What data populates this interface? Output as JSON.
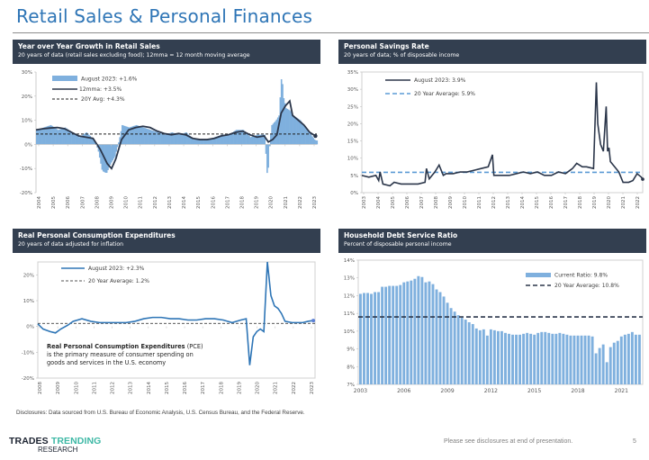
{
  "page": {
    "title": "Retail Sales & Personal Finances",
    "disclosure": "Disclosures: Data sourced from U.S. Bureau of Economic Analysis, U.S. Census Bureau, and the Federal Reserve.",
    "footer_note": "Please see disclosures at end of presentation.",
    "page_number": "5",
    "logo": {
      "word1": "TRADES",
      "word2": "TRENDING",
      "word3": "RESEARCH"
    },
    "colors": {
      "title": "#2e75b6",
      "header_bg": "#333f50",
      "bar_blue": "#7fb0de",
      "dark_line": "#2b364a",
      "mid_blue": "#2e75b6",
      "dash_blue": "#5b9bd5",
      "logo_teal": "#3db8a5"
    }
  },
  "panels": {
    "retail": {
      "title": "Year over Year Growth in Retail Sales",
      "subtitle": "20 years of data (retail sales excluding food); 12mma = 12 month moving average"
    },
    "savings": {
      "title": "Personal Savings Rate",
      "subtitle": "20 years of data; % of disposable income"
    },
    "pce": {
      "title": "Real Personal Consumption Expenditures",
      "subtitle": "20 years of data adjusted for inflation",
      "annotation_bold": "Real Personal Consumption Expenditures",
      "annotation_rest1": " (PCE)",
      "annotation_line2": "is the primary measure of consumer spending on",
      "annotation_line3": "goods and services in the U.S. economy"
    },
    "debt": {
      "title": "Household Debt Service Ratio",
      "subtitle": "Percent of disposable personal income"
    }
  },
  "chart_data": [
    {
      "id": "retail",
      "type": "bar",
      "title": "Year over Year Growth in Retail Sales",
      "ylim": [
        -20,
        30
      ],
      "yticks": [
        -20,
        -10,
        0,
        10,
        20,
        30
      ],
      "ytick_labels": [
        "-20%",
        "-10%",
        "0%",
        "10%",
        "20%",
        "30%"
      ],
      "x_range": [
        2004,
        2023.7
      ],
      "xtick_labels": [
        "2004",
        "2005",
        "2006",
        "2007",
        "2008",
        "2009",
        "2010",
        "2011",
        "2012",
        "2013",
        "2014",
        "2015",
        "2016",
        "2017",
        "2018",
        "2019",
        "2020",
        "2021",
        "2022",
        "2023"
      ],
      "legend": [
        "August 2023: +1.6%",
        "12mma: +3.5%",
        "20Y Avg: +4.3%"
      ],
      "legend_position": "top-left",
      "average": 4.3,
      "series": [
        {
          "name": "YoY monthly (bars)",
          "x": [
            2004.0,
            2004.5,
            2005.0,
            2005.5,
            2006.0,
            2006.5,
            2007.0,
            2007.5,
            2008.0,
            2008.3,
            2008.6,
            2008.9,
            2009.2,
            2009.5,
            2009.8,
            2010.0,
            2010.5,
            2011.0,
            2011.5,
            2012.0,
            2012.5,
            2013.0,
            2013.5,
            2014.0,
            2014.5,
            2015.0,
            2015.5,
            2016.0,
            2016.5,
            2017.0,
            2017.5,
            2018.0,
            2018.5,
            2019.0,
            2019.5,
            2020.0,
            2020.2,
            2020.35,
            2020.5,
            2020.8,
            2021.0,
            2021.2,
            2021.3,
            2021.5,
            2021.8,
            2022.0,
            2022.5,
            2023.0,
            2023.5,
            2023.6
          ],
          "values": [
            6,
            7,
            8,
            6,
            7,
            5,
            3,
            5,
            2,
            -2,
            -11,
            -12,
            -8,
            -5,
            2,
            8,
            7,
            8,
            7,
            6,
            5,
            4,
            5,
            4,
            5,
            2,
            2,
            2,
            3,
            4,
            4,
            6,
            6,
            3,
            4,
            4,
            -15,
            1,
            8,
            10,
            12,
            30,
            20,
            15,
            14,
            12,
            10,
            6,
            2,
            1.6
          ]
        },
        {
          "name": "12mma",
          "x": [
            2004.0,
            2004.5,
            2005.0,
            2005.5,
            2006.0,
            2006.5,
            2007.0,
            2007.5,
            2008.0,
            2008.5,
            2009.0,
            2009.3,
            2009.6,
            2010.0,
            2010.5,
            2011.0,
            2011.5,
            2012.0,
            2012.5,
            2013.0,
            2013.5,
            2014.0,
            2014.5,
            2015.0,
            2015.5,
            2016.0,
            2016.5,
            2017.0,
            2017.5,
            2018.0,
            2018.5,
            2019.0,
            2019.5,
            2020.0,
            2020.3,
            2020.6,
            2020.9,
            2021.2,
            2021.5,
            2021.8,
            2022.0,
            2022.4,
            2022.8,
            2023.2,
            2023.6
          ],
          "values": [
            6,
            6.5,
            6.8,
            7,
            6.5,
            5,
            3.5,
            3,
            2.5,
            -2,
            -8,
            -10,
            -6,
            2,
            6,
            7,
            7.5,
            7,
            5.5,
            4.5,
            4,
            4.5,
            4,
            2.5,
            2,
            2,
            2.5,
            3.5,
            4,
            5,
            5.5,
            4,
            3,
            3.5,
            1,
            2,
            4,
            13,
            16,
            18,
            12,
            10,
            8,
            5,
            3.5
          ]
        }
      ]
    },
    {
      "id": "savings",
      "type": "line",
      "title": "Personal Savings Rate",
      "ylim": [
        0,
        35
      ],
      "yticks": [
        0,
        5,
        10,
        15,
        20,
        25,
        30,
        35
      ],
      "ytick_labels": [
        "0%",
        "5%",
        "10%",
        "15%",
        "20%",
        "25%",
        "30%",
        "35%"
      ],
      "x_range": [
        2003,
        2023
      ],
      "xtick_labels": [
        "2003",
        "2004",
        "2005",
        "2006",
        "2007",
        "2008",
        "2009",
        "2010",
        "2011",
        "2012",
        "2013",
        "2014",
        "2015",
        "2016",
        "2017",
        "2018",
        "2019",
        "2020",
        "2021",
        "2022"
      ],
      "legend": [
        "August 2023: 3.9%",
        "20 Year Average: 5.9%"
      ],
      "legend_position": "top-left",
      "average": 5.9,
      "series": [
        {
          "name": "Personal Savings Rate",
          "x": [
            2003.0,
            2003.5,
            2004.0,
            2004.2,
            2004.3,
            2004.5,
            2005.0,
            2005.3,
            2005.8,
            2006.5,
            2007.0,
            2007.5,
            2007.6,
            2007.8,
            2008.2,
            2008.5,
            2008.8,
            2009.0,
            2009.5,
            2010.0,
            2010.5,
            2011.0,
            2011.5,
            2012.0,
            2012.3,
            2012.4,
            2012.6,
            2013.0,
            2013.5,
            2014.0,
            2014.5,
            2015.0,
            2015.5,
            2016.0,
            2016.5,
            2017.0,
            2017.5,
            2018.0,
            2018.3,
            2018.7,
            2019.0,
            2019.5,
            2019.7,
            2019.8,
            2020.0,
            2020.2,
            2020.4,
            2020.5,
            2020.6,
            2020.7,
            2021.0,
            2021.3,
            2021.6,
            2022.0,
            2022.3,
            2022.6,
            2022.9,
            2023.0
          ],
          "values": [
            5,
            4.5,
            5,
            3.5,
            6,
            2.5,
            2,
            3,
            2.5,
            2.5,
            2.5,
            3,
            7,
            4,
            6,
            8,
            5,
            5.5,
            5.5,
            6,
            6,
            6.5,
            7,
            7.5,
            11,
            5,
            5,
            5,
            5,
            5.5,
            6,
            5.5,
            6,
            5,
            5,
            6,
            5.5,
            7,
            8.5,
            7.5,
            7.5,
            7,
            32,
            20,
            14,
            12,
            25,
            12,
            13,
            9,
            7.5,
            6,
            3,
            3,
            3.5,
            5.5,
            4.5,
            3.9
          ]
        }
      ]
    },
    {
      "id": "pce",
      "type": "line",
      "title": "Real Personal Consumption Expenditures",
      "ylim": [
        -20,
        25
      ],
      "yticks": [
        -20,
        -10,
        0,
        10,
        20
      ],
      "ytick_labels": [
        "-20%",
        "-10%",
        "0%",
        "10%",
        "20%"
      ],
      "x_range": [
        2008,
        2023.7
      ],
      "xtick_labels": [
        "2008",
        "2009",
        "2010",
        "2011",
        "2012",
        "2013",
        "2014",
        "2015",
        "2016",
        "2017",
        "2018",
        "2019",
        "2020",
        "2021",
        "2022",
        "2023"
      ],
      "legend": [
        "August 2023: +2.3%",
        "20 Year Average: 1.2%"
      ],
      "legend_position": "top-left",
      "average": 1.2,
      "series": [
        {
          "name": "Real PCE YoY",
          "x": [
            2008.0,
            2008.3,
            2008.7,
            2009.0,
            2009.3,
            2009.7,
            2010.0,
            2010.5,
            2011.0,
            2011.5,
            2012.0,
            2012.5,
            2013.0,
            2013.5,
            2014.0,
            2014.5,
            2015.0,
            2015.5,
            2016.0,
            2016.5,
            2017.0,
            2017.5,
            2018.0,
            2018.5,
            2019.0,
            2019.5,
            2019.8,
            2020.0,
            2020.2,
            2020.4,
            2020.6,
            2020.8,
            2021.0,
            2021.2,
            2021.4,
            2021.6,
            2021.8,
            2022.0,
            2022.4,
            2022.8,
            2023.0,
            2023.3,
            2023.6
          ],
          "values": [
            1,
            -1,
            -2,
            -2.5,
            -1,
            0.5,
            2,
            3,
            2,
            1.5,
            1.5,
            1.5,
            1.5,
            2,
            3,
            3.5,
            3.5,
            3,
            3,
            2.5,
            2.5,
            3,
            3,
            2.5,
            1.5,
            2.5,
            3,
            -15,
            -4,
            -2,
            -1,
            -2,
            25,
            12,
            8,
            7,
            5,
            2,
            1.5,
            1.5,
            1.5,
            2,
            2.3
          ]
        }
      ]
    },
    {
      "id": "debt",
      "type": "bar",
      "title": "Household Debt Service Ratio",
      "ylim": [
        7,
        14
      ],
      "yticks": [
        7,
        8,
        9,
        10,
        11,
        12,
        13,
        14
      ],
      "ytick_labels": [
        "7%",
        "8%",
        "9%",
        "10%",
        "11%",
        "12%",
        "13%",
        "14%"
      ],
      "xtick_labels": [
        "2003",
        "2006",
        "2009",
        "2012",
        "2015",
        "2018",
        "2021"
      ],
      "legend": [
        "Current Ratio: 9.8%",
        "20 Year Average: 10.8%"
      ],
      "legend_position": "top-right",
      "average": 10.8,
      "series": [
        {
          "name": "Debt Service Ratio (quarterly, 2003Q1-2023Q2)",
          "values": [
            12.1,
            12.15,
            12.15,
            12.1,
            12.2,
            12.2,
            12.5,
            12.5,
            12.55,
            12.55,
            12.55,
            12.6,
            12.75,
            12.8,
            12.85,
            12.95,
            13.1,
            13.05,
            12.75,
            12.8,
            12.65,
            12.35,
            12.2,
            11.95,
            11.6,
            11.3,
            11.1,
            10.9,
            10.75,
            10.65,
            10.5,
            10.4,
            10.15,
            10.05,
            10.1,
            9.75,
            10.1,
            10.05,
            10.0,
            10.0,
            9.9,
            9.85,
            9.8,
            9.8,
            9.8,
            9.85,
            9.9,
            9.85,
            9.8,
            9.9,
            9.95,
            9.95,
            9.9,
            9.85,
            9.85,
            9.9,
            9.85,
            9.8,
            9.75,
            9.75,
            9.75,
            9.75,
            9.75,
            9.75,
            9.7,
            8.75,
            9.05,
            9.25,
            8.25,
            9.1,
            9.35,
            9.45,
            9.7,
            9.8,
            9.85,
            9.95,
            9.8,
            9.8
          ]
        }
      ]
    }
  ]
}
